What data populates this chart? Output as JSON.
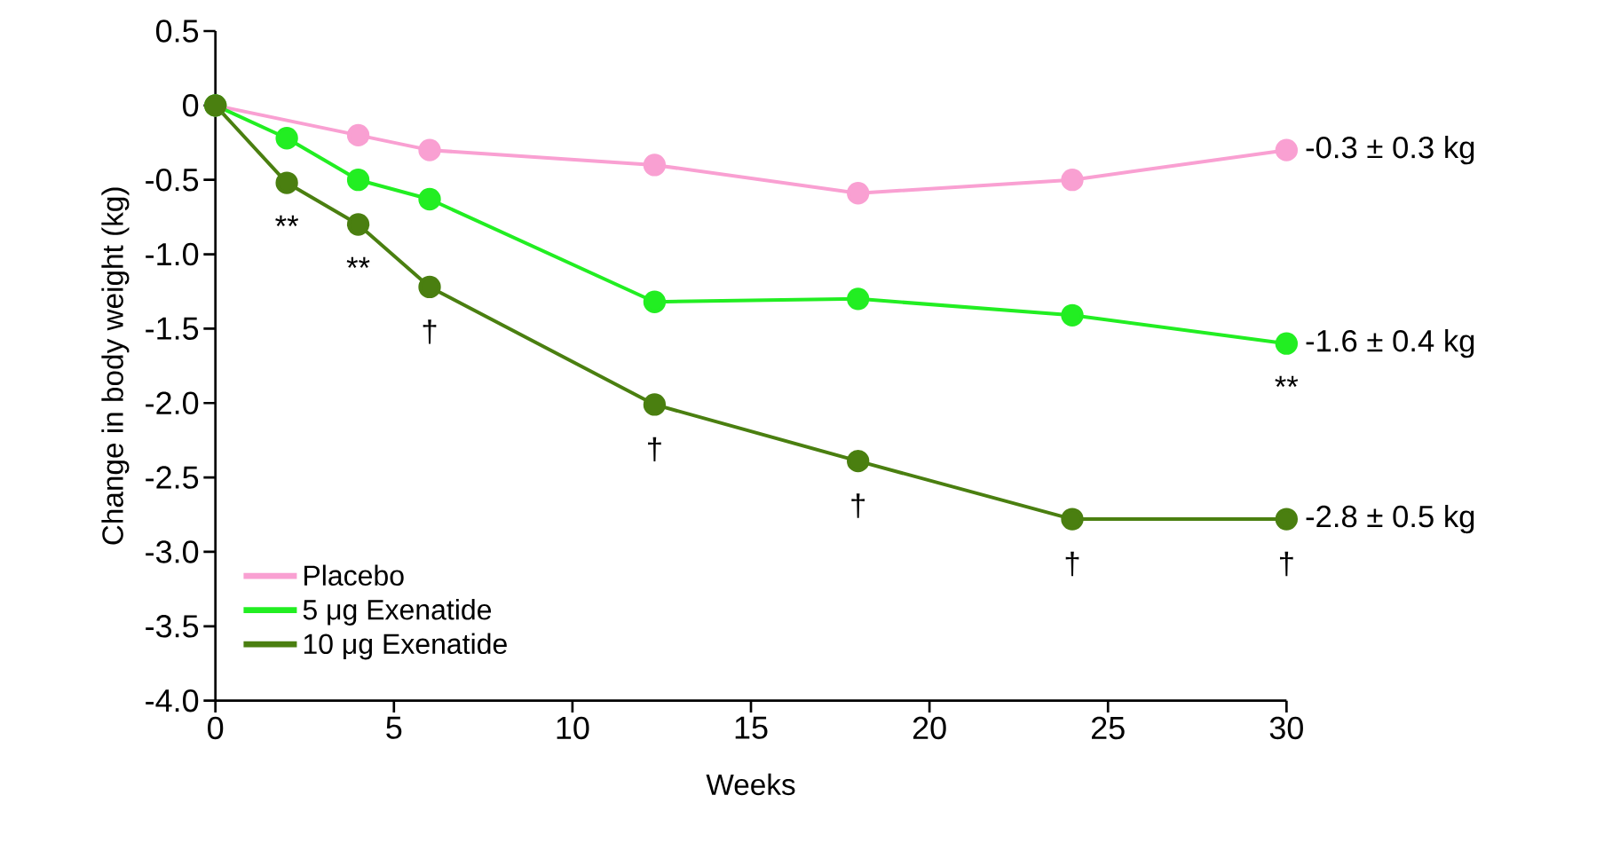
{
  "chart_data": {
    "type": "line",
    "xlabel": "Weeks",
    "ylabel": "Change in body weight (kg)",
    "xlim": [
      0,
      30
    ],
    "xticks": [
      0,
      5,
      10,
      15,
      20,
      25,
      30
    ],
    "ylim": [
      -4.0,
      0.5
    ],
    "yticks": [
      0.5,
      0,
      -0.5,
      {
        "value": -1,
        "label": "-1.0"
      },
      -1.5,
      {
        "value": -2,
        "label": "-2.0"
      },
      -2.5,
      {
        "value": -3,
        "label": "-3.0"
      },
      -3.5,
      {
        "value": -4,
        "label": "-4.0"
      }
    ],
    "grid": false,
    "legend": "bottom left",
    "marker": "circle",
    "line_style": "solid",
    "x": [
      0,
      2,
      4,
      6,
      12.3,
      18,
      24,
      30
    ],
    "series": [
      {
        "name": "Placebo",
        "color": "#f9a0d2",
        "values": [
          0,
          null,
          -0.2,
          -0.3,
          -0.4,
          -0.59,
          -0.5,
          -0.3
        ]
      },
      {
        "name": "5 μg Exenatide",
        "color": "#22ee22",
        "values": [
          0,
          -0.22,
          -0.5,
          -0.63,
          -1.32,
          -1.3,
          -1.41,
          -1.6
        ]
      },
      {
        "name": "10 μg Exenatide",
        "color": "#4a7f10",
        "values": [
          0,
          -0.52,
          -0.8,
          -1.22,
          -2.01,
          -2.39,
          -2.78,
          -2.78
        ]
      }
    ],
    "annotations": [
      {
        "text": "**",
        "x": 2,
        "y": -0.52
      },
      {
        "text": "**",
        "x": 4,
        "y": -0.8
      },
      {
        "text": "†",
        "x": 6,
        "y": -1.22
      },
      {
        "text": "†",
        "x": 12.3,
        "y": -2.01
      },
      {
        "text": "†",
        "x": 18,
        "y": -2.39
      },
      {
        "text": "†",
        "x": 24,
        "y": -2.78
      },
      {
        "text": "†",
        "x": 30,
        "y": -2.78
      },
      {
        "text": "**",
        "x": 30,
        "y": -1.6
      },
      {
        "text": "-0.3 ± 0.3 kg",
        "x": 30,
        "y": -0.3
      },
      {
        "text": "-1.6 ± 0.4 kg",
        "x": 30,
        "y": -1.6
      },
      {
        "text": "-2.8 ± 0.5 kg",
        "x": 30,
        "y": -2.78
      }
    ]
  }
}
